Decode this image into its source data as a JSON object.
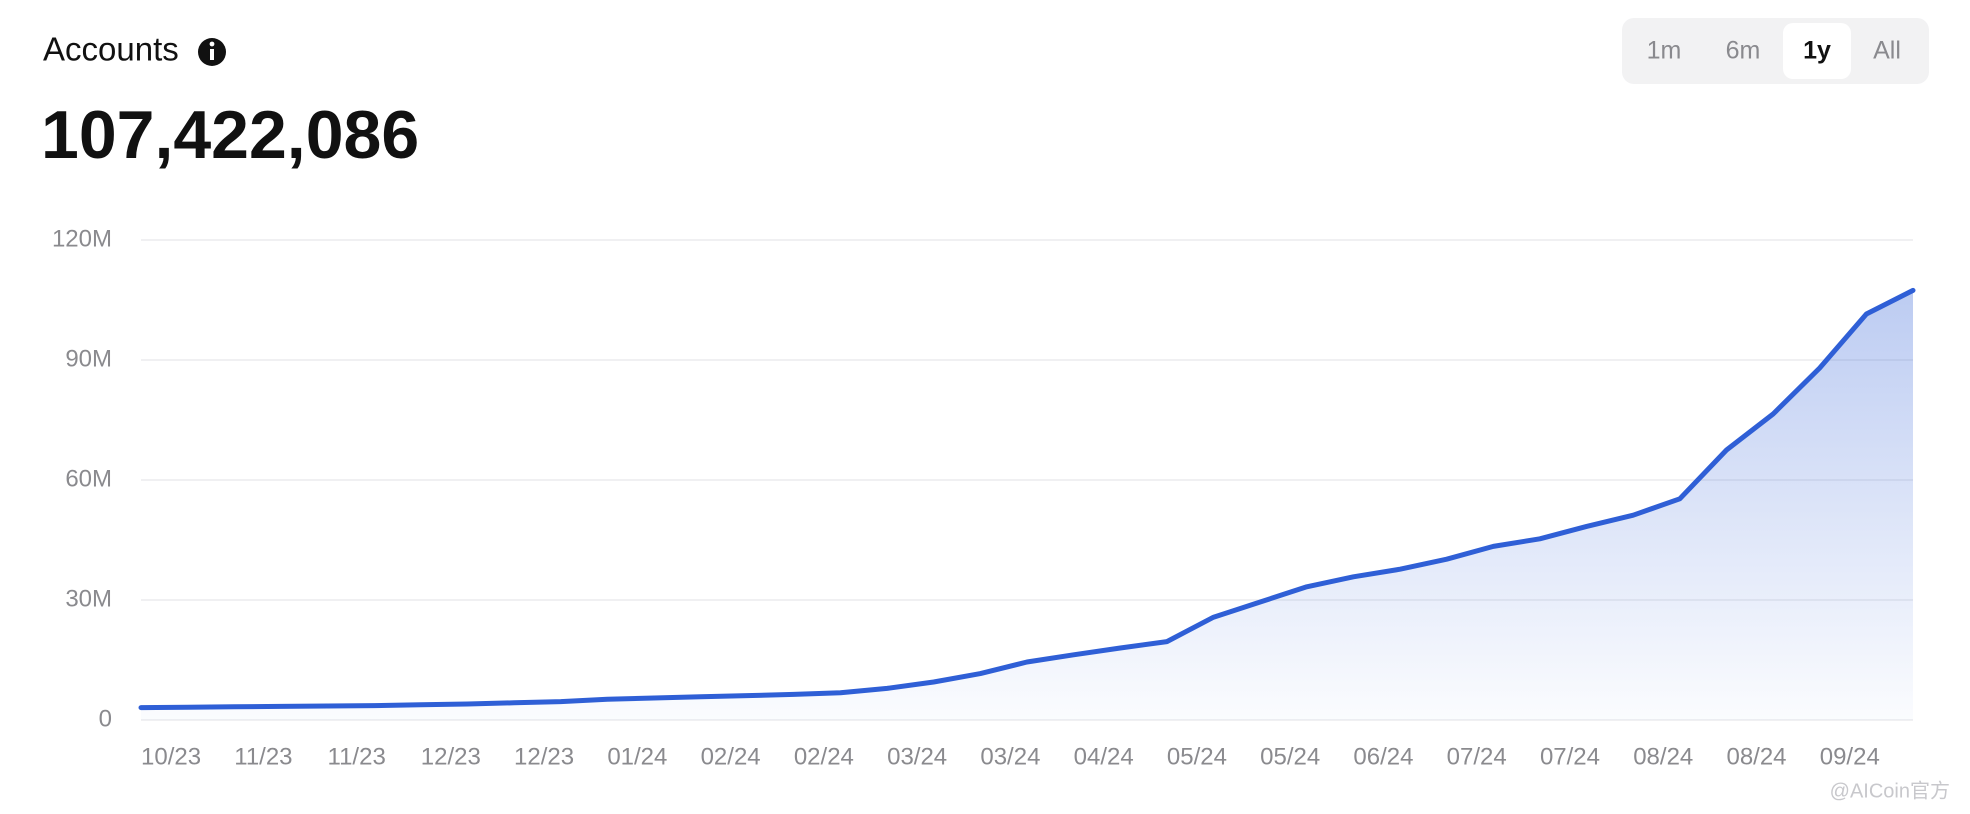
{
  "chart_data": {
    "type": "line",
    "title": "Accounts",
    "headline": "107,422,086",
    "range_options": [
      "1m",
      "6m",
      "1y",
      "All"
    ],
    "selected_range": "1y",
    "watermark": "@AICoin官方",
    "categories": [
      "10/23",
      null,
      "11/23",
      null,
      "11/23",
      null,
      "12/23",
      null,
      "12/23",
      null,
      "01/24",
      null,
      "02/24",
      null,
      "02/24",
      null,
      "03/24",
      null,
      "03/24",
      null,
      "04/24",
      null,
      "05/24",
      null,
      "05/24",
      null,
      "06/24",
      null,
      "07/24",
      null,
      "07/24",
      null,
      "08/24",
      null,
      "08/24",
      null,
      "09/24",
      null,
      null
    ],
    "series": [
      {
        "name": "Accounts",
        "color": "#2f5fd6",
        "values": [
          3.1,
          3.2,
          3.3,
          3.4,
          3.5,
          3.6,
          3.8,
          4.0,
          4.3,
          4.6,
          5.2,
          5.5,
          5.8,
          6.1,
          6.4,
          6.8,
          7.9,
          9.5,
          11.6,
          14.5,
          16.3,
          18.0,
          19.6,
          25.7,
          29.5,
          33.3,
          35.8,
          37.7,
          40.2,
          43.4,
          45.3,
          48.4,
          51.2,
          55.3,
          67.5,
          76.5,
          88.0,
          101.5,
          107.4
        ]
      }
    ],
    "ylim": [
      0,
      120
    ],
    "yticks": [
      0,
      {
        "value": 30,
        "label": "30M"
      },
      {
        "value": 60,
        "label": "60M"
      },
      {
        "value": 90,
        "label": "90M"
      },
      {
        "value": 120,
        "label": "120M"
      }
    ],
    "grid": true,
    "area_fill": true
  }
}
